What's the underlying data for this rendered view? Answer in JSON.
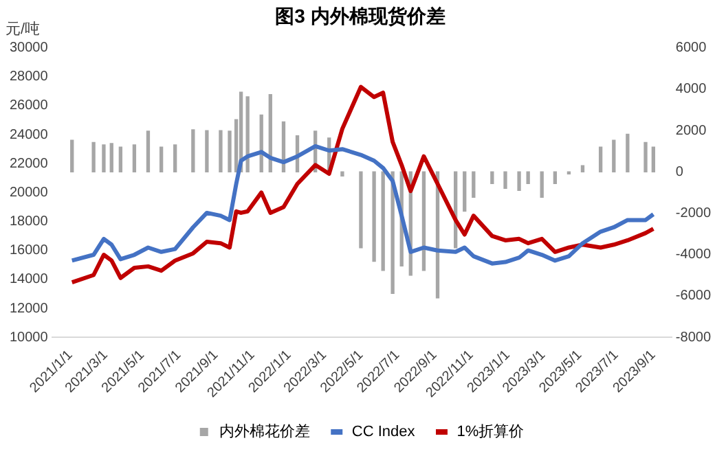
{
  "chart_data": {
    "type": "line",
    "title": "图3 内外棉现货价差",
    "ylabel": "元/吨",
    "x": [
      "2021-01-04",
      "2021-02-09",
      "2021-02-26",
      "2021-03-11",
      "2021-03-26",
      "2021-04-18",
      "2021-05-11",
      "2021-06-02",
      "2021-06-25",
      "2021-07-25",
      "2021-08-17",
      "2021-09-09",
      "2021-09-24",
      "2021-10-05",
      "2021-10-13",
      "2021-10-24",
      "2021-11-16",
      "2021-12-01",
      "2021-12-23",
      "2022-01-15",
      "2022-02-14",
      "2022-03-09",
      "2022-03-31",
      "2022-05-01",
      "2022-05-23",
      "2022-06-07",
      "2022-06-23",
      "2022-07-08",
      "2022-07-23",
      "2022-08-14",
      "2022-09-06",
      "2022-10-06",
      "2022-10-21",
      "2022-11-05",
      "2022-12-06",
      "2022-12-28",
      "2023-01-20",
      "2023-02-04",
      "2023-02-27",
      "2023-03-21",
      "2023-04-13",
      "2023-05-06",
      "2023-06-05",
      "2023-06-27",
      "2023-07-20",
      "2023-08-19",
      "2023-09-01"
    ],
    "series": [
      {
        "name": "内外棉花价差",
        "type": "bar",
        "axis": "y2",
        "color": "#a6a6a6",
        "values": [
          1530,
          1420,
          1310,
          1370,
          1200,
          1310,
          1970,
          1200,
          1310,
          2040,
          2000,
          2000,
          1970,
          2530,
          3860,
          3630,
          2750,
          3740,
          2420,
          1750,
          1970,
          1640,
          -200,
          -3670,
          -4330,
          -4770,
          -5880,
          -4550,
          -5000,
          -4770,
          -6100,
          -3670,
          -1900,
          -1230,
          -570,
          -800,
          -900,
          -570,
          -1230,
          -570,
          -100,
          300,
          1200,
          1530,
          1820,
          1420,
          1200
        ]
      },
      {
        "name": "CC Index",
        "color": "#4472c4",
        "values": [
          15300,
          15700,
          16800,
          16400,
          15400,
          15700,
          16200,
          15900,
          16100,
          17600,
          18600,
          18400,
          18100,
          20600,
          22200,
          22500,
          22800,
          22400,
          22100,
          22500,
          23200,
          22900,
          23000,
          22600,
          22200,
          21700,
          20800,
          18400,
          15900,
          16200,
          16000,
          15900,
          16200,
          15600,
          15100,
          15200,
          15500,
          16000,
          15700,
          15300,
          15600,
          16500,
          17300,
          17600,
          18100,
          18100,
          18500
        ]
      },
      {
        "name": "1%折算价",
        "color": "#c00000",
        "values": [
          13800,
          14300,
          15700,
          15300,
          14100,
          14800,
          14900,
          14600,
          15300,
          15800,
          16600,
          16500,
          16200,
          18700,
          18600,
          18700,
          20000,
          18600,
          19000,
          20600,
          21900,
          21300,
          24400,
          27300,
          26600,
          26900,
          23500,
          21900,
          20100,
          22500,
          20600,
          18100,
          17100,
          18400,
          17000,
          16700,
          16800,
          16500,
          16800,
          15900,
          16200,
          16400,
          16200,
          16400,
          16700,
          17200,
          17500
        ]
      }
    ],
    "xlim": [
      "2021-01-01",
      "2023-09-01"
    ],
    "xticks": [
      {
        "value": "2021-01-01",
        "label": "2021/1/1"
      },
      {
        "value": "2021-03-01",
        "label": "2021/3/1"
      },
      {
        "value": "2021-05-01",
        "label": "2021/5/1"
      },
      {
        "value": "2021-07-01",
        "label": "2021/7/1"
      },
      {
        "value": "2021-09-01",
        "label": "2021/9/1"
      },
      {
        "value": "2021-11-01",
        "label": "2021/11/1"
      },
      {
        "value": "2022-01-01",
        "label": "2022/1/1"
      },
      {
        "value": "2022-03-01",
        "label": "2022/3/1"
      },
      {
        "value": "2022-05-01",
        "label": "2022/5/1"
      },
      {
        "value": "2022-07-01",
        "label": "2022/7/1"
      },
      {
        "value": "2022-09-01",
        "label": "2022/9/1"
      },
      {
        "value": "2022-11-01",
        "label": "2022/11/1"
      },
      {
        "value": "2023-01-01",
        "label": "2023/1/1"
      },
      {
        "value": "2023-03-01",
        "label": "2023/3/1"
      },
      {
        "value": "2023-05-01",
        "label": "2023/5/1"
      },
      {
        "value": "2023-07-01",
        "label": "2023/7/1"
      },
      {
        "value": "2023-09-01",
        "label": "2023/9/1"
      }
    ],
    "ylim": [
      10000,
      30000
    ],
    "yticks": [
      10000,
      12000,
      14000,
      16000,
      18000,
      20000,
      22000,
      24000,
      26000,
      28000,
      30000
    ],
    "y2lim": [
      -8000,
      6000
    ],
    "y2ticks": [
      -8000,
      -6000,
      -4000,
      -2000,
      0,
      2000,
      4000,
      6000
    ],
    "grid": false,
    "legend": "bottom",
    "marker": "none",
    "line_style": "solid"
  }
}
